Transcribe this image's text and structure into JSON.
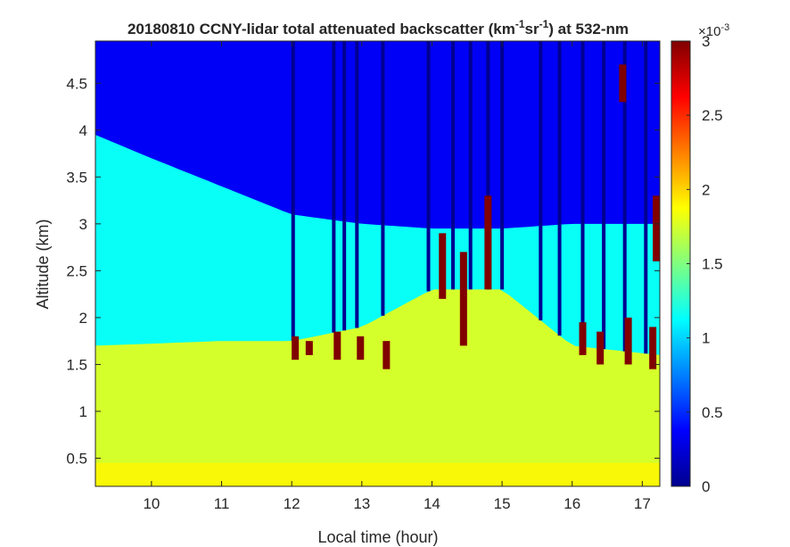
{
  "chart_data": {
    "type": "heatmap",
    "title": {
      "date": "20180810",
      "text_before_unit": "CCNY-lidar total attenuated backscatter (km",
      "sup1": "-1",
      "mid": "sr",
      "sup2": "-1",
      "text_after": ") at 532-nm"
    },
    "xlabel": "Local time (hour)",
    "ylabel": "Altitude (km)",
    "xlim": [
      9.2,
      17.25
    ],
    "ylim": [
      0.2,
      4.95
    ],
    "x_ticks": [
      10,
      11,
      12,
      13,
      14,
      15,
      16,
      17
    ],
    "y_ticks": [
      0.5,
      1,
      1.5,
      2,
      2.5,
      3,
      3.5,
      4,
      4.5
    ],
    "colorbar": {
      "ticks": [
        "0",
        "0.5",
        "1",
        "1.5",
        "2",
        "2.5",
        "3"
      ],
      "tick_values": [
        0,
        0.5,
        1,
        1.5,
        2,
        2.5,
        3
      ],
      "range": [
        0,
        3
      ],
      "multiplier_base": "×10",
      "multiplier_exp": "-3",
      "colormap": "jet"
    },
    "layers": {
      "free_troposphere_value": 0.35,
      "aerosol_layer_top_km": [
        [
          9.2,
          3.95
        ],
        [
          10.0,
          3.7
        ],
        [
          11.0,
          3.4
        ],
        [
          12.0,
          3.1
        ],
        [
          13.0,
          3.0
        ],
        [
          14.0,
          2.95
        ],
        [
          15.0,
          2.95
        ],
        [
          16.0,
          3.0
        ],
        [
          17.25,
          3.0
        ]
      ],
      "boundary_layer_top_km": [
        [
          9.2,
          1.7
        ],
        [
          11.0,
          1.75
        ],
        [
          12.0,
          1.75
        ],
        [
          13.0,
          1.9
        ],
        [
          14.0,
          2.3
        ],
        [
          15.0,
          2.3
        ],
        [
          16.0,
          1.7
        ],
        [
          17.25,
          1.6
        ]
      ],
      "residual_layer_value": 1.15,
      "boundary_layer_value": 1.75,
      "surface_layer_value": 1.9
    },
    "rain_signal_gaps_hour": [
      12.02,
      12.6,
      12.75,
      12.93,
      13.3,
      13.95,
      14.3,
      14.55,
      14.8,
      15.0,
      15.55,
      15.82,
      16.15,
      16.45,
      16.75,
      17.05
    ],
    "cloud_patches": [
      {
        "x": 12.05,
        "y": [
          1.55,
          1.8
        ],
        "value": 3
      },
      {
        "x": 12.25,
        "y": [
          1.6,
          1.75
        ],
        "value": 3
      },
      {
        "x": 12.65,
        "y": [
          1.55,
          1.85
        ],
        "value": 3
      },
      {
        "x": 12.98,
        "y": [
          1.55,
          1.8
        ],
        "value": 3
      },
      {
        "x": 13.35,
        "y": [
          1.45,
          1.75
        ],
        "value": 3
      },
      {
        "x": 14.15,
        "y": [
          2.2,
          2.9
        ],
        "value": 3
      },
      {
        "x": 14.45,
        "y": [
          1.7,
          2.7
        ],
        "value": 3
      },
      {
        "x": 14.8,
        "y": [
          2.3,
          3.3
        ],
        "value": 3
      },
      {
        "x": 16.15,
        "y": [
          1.6,
          1.95
        ],
        "value": 3
      },
      {
        "x": 16.4,
        "y": [
          1.5,
          1.85
        ],
        "value": 3
      },
      {
        "x": 16.72,
        "y": [
          4.3,
          4.7
        ],
        "value": 3
      },
      {
        "x": 16.8,
        "y": [
          1.5,
          2.0
        ],
        "value": 3
      },
      {
        "x": 17.15,
        "y": [
          1.45,
          1.9
        ],
        "value": 3
      },
      {
        "x": 17.2,
        "y": [
          2.6,
          3.3
        ],
        "value": 3
      }
    ]
  }
}
